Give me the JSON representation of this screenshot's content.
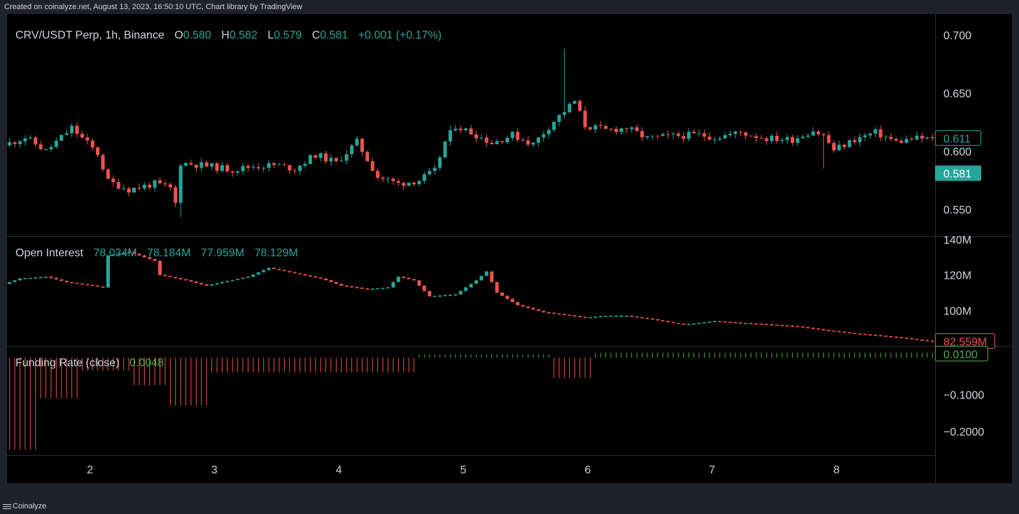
{
  "header": {
    "credit": "Created on coinalyze.net, August 13, 2023, 16:50:10 UTC, Chart library by TradingView"
  },
  "footer": {
    "brand": "Coinalyze"
  },
  "colors": {
    "up": "#26a69a",
    "down": "#ef5350",
    "background": "#000000",
    "axis_text": "#d1d4dc",
    "funding_positive": "#4caf50"
  },
  "chart_data": [
    {
      "type": "candlestick",
      "title": "CRV/USDT Perp, 1h, Binance",
      "ohlc_label": {
        "o_key": "O",
        "o": "0.580",
        "h_key": "H",
        "h": "0.582",
        "l_key": "L",
        "l": "0.579",
        "c_key": "C",
        "c": "0.581",
        "change": "+0.001 (+0.17%)"
      },
      "y_ticks": [
        "0.700",
        "0.650",
        "0.600",
        "0.550"
      ],
      "y_tick_values": [
        0.7,
        0.65,
        0.6,
        0.55
      ],
      "ylim": [
        0.527,
        0.718
      ],
      "price_tags": [
        {
          "label": "0.611",
          "value": 0.611,
          "style": "outline-up"
        },
        {
          "label": "0.581",
          "value": 0.581,
          "style": "filled-up"
        }
      ],
      "x_ticks": [
        "2",
        "3",
        "4",
        "5",
        "6",
        "7",
        "8"
      ],
      "x_tick_hours": [
        24,
        48,
        72,
        96,
        120,
        144,
        168
      ],
      "x_range_hours": [
        8,
        187
      ],
      "close_anchors": [
        [
          8,
          0.605
        ],
        [
          12,
          0.612
        ],
        [
          16,
          0.6
        ],
        [
          21,
          0.62
        ],
        [
          26,
          0.598
        ],
        [
          28,
          0.574
        ],
        [
          32,
          0.567
        ],
        [
          37,
          0.572
        ],
        [
          40,
          0.568
        ],
        [
          41,
          0.555
        ],
        [
          42,
          0.59
        ],
        [
          46,
          0.588
        ],
        [
          52,
          0.584
        ],
        [
          56,
          0.587
        ],
        [
          60,
          0.588
        ],
        [
          64,
          0.585
        ],
        [
          68,
          0.597
        ],
        [
          72,
          0.59
        ],
        [
          76,
          0.608
        ],
        [
          80,
          0.578
        ],
        [
          84,
          0.572
        ],
        [
          88,
          0.575
        ],
        [
          91,
          0.583
        ],
        [
          93,
          0.608
        ],
        [
          95,
          0.622
        ],
        [
          99,
          0.614
        ],
        [
          102,
          0.607
        ],
        [
          106,
          0.614
        ],
        [
          110,
          0.606
        ],
        [
          114,
          0.626
        ],
        [
          118,
          0.643
        ],
        [
          120,
          0.622
        ],
        [
          124,
          0.618
        ],
        [
          128,
          0.62
        ],
        [
          132,
          0.611
        ],
        [
          137,
          0.613
        ],
        [
          142,
          0.614
        ],
        [
          145,
          0.612
        ],
        [
          150,
          0.616
        ],
        [
          155,
          0.611
        ],
        [
          160,
          0.61
        ],
        [
          164,
          0.618
        ],
        [
          166,
          0.613
        ],
        [
          168,
          0.601
        ],
        [
          172,
          0.61
        ],
        [
          176,
          0.616
        ],
        [
          180,
          0.608
        ],
        [
          184,
          0.611
        ],
        [
          187,
          0.611
        ]
      ]
    },
    {
      "type": "candlestick",
      "title": "Open Interest",
      "values_label": [
        "78.034M",
        "78.184M",
        "77.959M",
        "78.129M"
      ],
      "y_ticks": [
        "140M",
        "120M",
        "100M"
      ],
      "y_tick_values": [
        140,
        120,
        100
      ],
      "ylim": [
        80,
        140
      ],
      "last_tag": {
        "label": "82.559M",
        "value": 82.559
      },
      "x_range_hours": [
        8,
        187
      ],
      "anchors": [
        [
          8,
          115
        ],
        [
          11,
          118
        ],
        [
          16,
          119
        ],
        [
          20,
          116
        ],
        [
          25,
          114
        ],
        [
          27,
          113
        ],
        [
          28,
          131
        ],
        [
          32,
          133
        ],
        [
          37,
          128
        ],
        [
          38,
          120
        ],
        [
          43,
          117
        ],
        [
          47,
          114
        ],
        [
          50,
          116
        ],
        [
          55,
          119
        ],
        [
          59,
          124
        ],
        [
          64,
          121
        ],
        [
          69,
          118
        ],
        [
          73,
          114
        ],
        [
          78,
          112
        ],
        [
          82,
          113
        ],
        [
          84,
          119
        ],
        [
          87,
          117
        ],
        [
          90,
          108
        ],
        [
          95,
          109
        ],
        [
          99,
          117
        ],
        [
          101,
          122
        ],
        [
          103,
          110
        ],
        [
          107,
          103
        ],
        [
          112,
          99
        ],
        [
          115,
          98
        ],
        [
          120,
          96
        ],
        [
          124,
          97
        ],
        [
          128,
          97
        ],
        [
          133,
          95
        ],
        [
          139,
          92
        ],
        [
          145,
          94
        ],
        [
          150,
          93
        ],
        [
          156,
          92
        ],
        [
          161,
          91
        ],
        [
          166,
          89
        ],
        [
          172,
          87
        ],
        [
          180,
          85
        ],
        [
          187,
          82.5
        ]
      ]
    },
    {
      "type": "bar",
      "title": "Funding Rate (close)",
      "value_label": "0.0048",
      "y_ticks": [
        "−0.1000",
        "−0.2000"
      ],
      "y_tick_values": [
        -0.1,
        -0.2
      ],
      "ylim": [
        -0.265,
        0.03
      ],
      "last_tag": {
        "label": "0.0100",
        "value": 0.01
      },
      "x_range_hours": [
        8,
        187
      ],
      "segments": [
        {
          "from": 8,
          "to": 14,
          "value": -0.25
        },
        {
          "from": 14,
          "to": 22,
          "value": -0.11
        },
        {
          "from": 22,
          "to": 32,
          "value": -0.035
        },
        {
          "from": 32,
          "to": 39,
          "value": -0.075
        },
        {
          "from": 39,
          "to": 47,
          "value": -0.13
        },
        {
          "from": 47,
          "to": 87,
          "value": -0.04
        },
        {
          "from": 87,
          "to": 113,
          "value": 0.0048
        },
        {
          "from": 113,
          "to": 121,
          "value": -0.055
        },
        {
          "from": 121,
          "to": 187,
          "value": 0.01
        }
      ]
    }
  ]
}
